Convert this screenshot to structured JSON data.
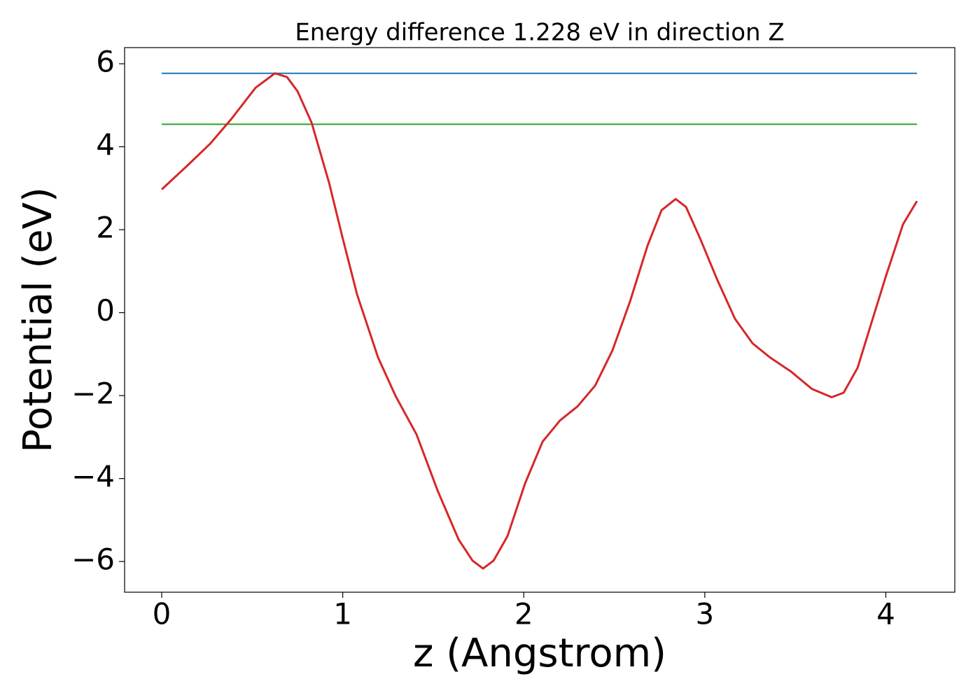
{
  "chart_data": {
    "type": "line",
    "title": "Energy difference 1.228 eV in direction Z",
    "x_label": "z (Angstrom)",
    "y_label": "Potential (eV)",
    "xlim": [
      -0.205,
      4.381
    ],
    "ylim": [
      -6.74,
      6.39
    ],
    "xticks": [
      0,
      1,
      2,
      3,
      4
    ],
    "yticks": [
      6,
      4,
      2,
      0,
      {
        "value": -2,
        "label": "−2"
      },
      {
        "value": -4,
        "label": "−4"
      },
      {
        "value": -6,
        "label": "−6"
      }
    ],
    "grid": false,
    "series": [
      {
        "color": "#1f77b4",
        "x": [
          0,
          4.172
        ],
        "values": [
          5.77,
          5.77
        ]
      },
      {
        "color": "#2ca02c",
        "x": [
          0,
          4.172
        ],
        "values": [
          4.542,
          4.542
        ]
      },
      {
        "color": "#d62728",
        "x": [
          0,
          0.054,
          0.143,
          0.267,
          0.383,
          0.518,
          0.625,
          0.692,
          0.75,
          0.828,
          0.924,
          1.0,
          1.079,
          1.195,
          1.292,
          1.408,
          1.524,
          1.64,
          1.717,
          1.775,
          1.833,
          1.91,
          2.007,
          2.104,
          2.2,
          2.297,
          2.394,
          2.49,
          2.587,
          2.684,
          2.761,
          2.839,
          2.896,
          2.974,
          3.07,
          3.167,
          3.264,
          3.36,
          3.476,
          3.592,
          3.701,
          3.767,
          3.844,
          3.921,
          3.999,
          4.095,
          4.172
        ],
        "values": [
          2.97,
          3.19,
          3.55,
          4.07,
          4.66,
          5.42,
          5.77,
          5.68,
          5.34,
          4.58,
          3.14,
          1.79,
          0.44,
          -1.08,
          -2.01,
          -2.94,
          -4.29,
          -5.47,
          -5.98,
          -6.17,
          -5.98,
          -5.39,
          -4.12,
          -3.11,
          -2.6,
          -2.26,
          -1.76,
          -0.91,
          0.27,
          1.62,
          2.47,
          2.74,
          2.55,
          1.79,
          0.78,
          -0.15,
          -0.74,
          -1.08,
          -1.42,
          -1.84,
          -2.04,
          -1.93,
          -1.33,
          -0.24,
          0.86,
          2.13,
          2.69
        ]
      }
    ]
  }
}
